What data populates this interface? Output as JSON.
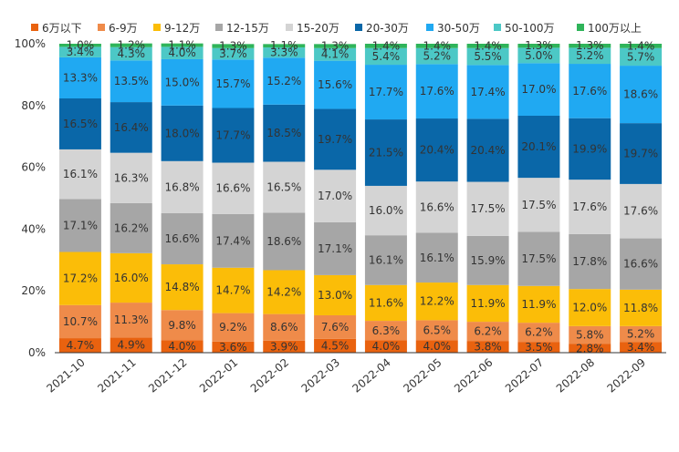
{
  "chart_data": {
    "type": "bar",
    "stacked": true,
    "percent": true,
    "title": "",
    "xlabel": "",
    "ylabel": "",
    "ylim": [
      0,
      100
    ],
    "yticks": [
      "0%",
      "20%",
      "40%",
      "60%",
      "80%",
      "100%"
    ],
    "legend_position": "top",
    "categories": [
      "2021-10",
      "2021-11",
      "2021-12",
      "2022-01",
      "2022-02",
      "2022-03",
      "2022-04",
      "2022-05",
      "2022-06",
      "2022-07",
      "2022-08",
      "2022-09"
    ],
    "series": [
      {
        "name": "6万以下",
        "color": "#e9620f",
        "values": [
          4.7,
          4.9,
          4.0,
          3.6,
          3.9,
          4.5,
          4.0,
          4.0,
          3.8,
          3.5,
          2.8,
          3.4
        ]
      },
      {
        "name": "6-9万",
        "color": "#ef8b4a",
        "values": [
          10.7,
          11.3,
          9.8,
          9.2,
          8.6,
          7.6,
          6.3,
          6.5,
          6.2,
          6.2,
          5.8,
          5.2
        ]
      },
      {
        "name": "9-12万",
        "color": "#fbbd08",
        "values": [
          17.2,
          16.0,
          14.8,
          14.7,
          14.2,
          13.0,
          11.6,
          12.2,
          11.9,
          11.9,
          12.0,
          11.8
        ]
      },
      {
        "name": "12-15万",
        "color": "#a6a6a6",
        "values": [
          17.1,
          16.2,
          16.6,
          17.4,
          18.6,
          17.1,
          16.1,
          16.1,
          15.9,
          17.5,
          17.8,
          16.6
        ]
      },
      {
        "name": "15-20万",
        "color": "#d4d4d4",
        "values": [
          16.1,
          16.3,
          16.8,
          16.6,
          16.5,
          17.0,
          16.0,
          16.6,
          17.5,
          17.5,
          17.6,
          17.6
        ]
      },
      {
        "name": "20-30万",
        "color": "#0a67a8",
        "values": [
          16.5,
          16.4,
          18.0,
          17.7,
          18.5,
          19.7,
          21.5,
          20.4,
          20.4,
          20.1,
          19.9,
          19.7
        ]
      },
      {
        "name": "30-50万",
        "color": "#20a9f2",
        "values": [
          13.3,
          13.5,
          15.0,
          15.7,
          15.2,
          15.6,
          17.7,
          17.6,
          17.4,
          17.0,
          17.6,
          18.6
        ]
      },
      {
        "name": "50-100万",
        "color": "#4cc8c6",
        "values": [
          3.4,
          4.3,
          4.0,
          3.7,
          3.3,
          4.1,
          5.4,
          5.2,
          5.5,
          5.0,
          5.2,
          5.7
        ]
      },
      {
        "name": "100万以上",
        "color": "#2fb45a",
        "values": [
          1.0,
          1.2,
          1.1,
          1.3,
          1.1,
          1.3,
          1.4,
          1.4,
          1.4,
          1.3,
          1.3,
          1.4
        ]
      }
    ]
  }
}
